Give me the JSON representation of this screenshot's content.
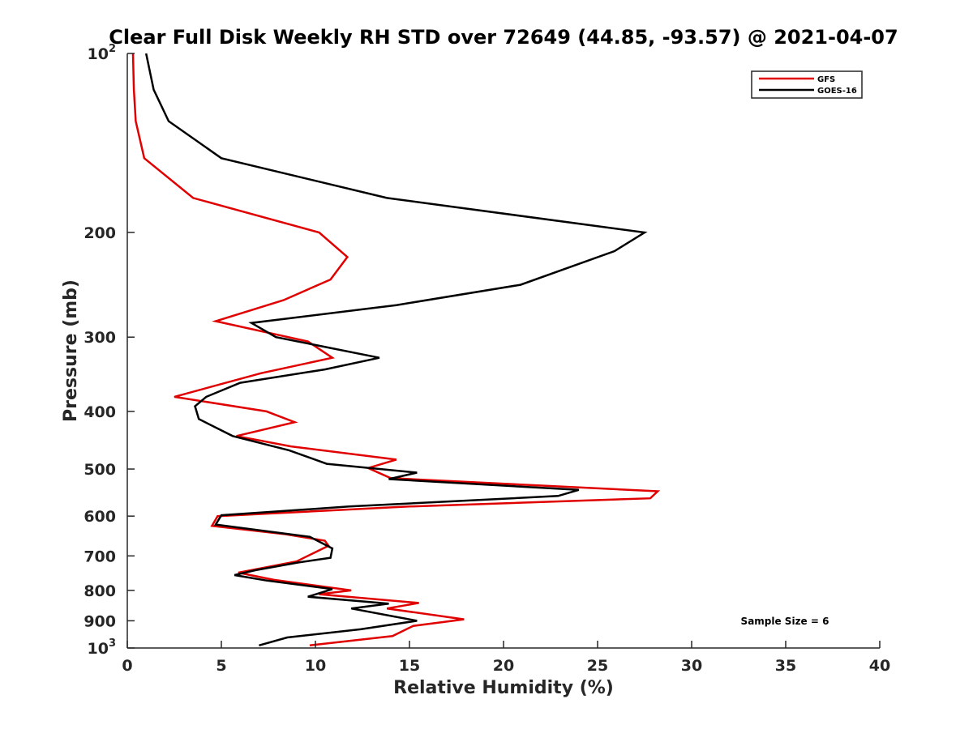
{
  "chart_data": {
    "type": "line",
    "title": "Clear Full Disk Weekly RH STD over 72649 (44.85, -93.57) @ 2021-04-07",
    "xlabel": "Relative Humidity (%)",
    "ylabel": "Pressure (mb)",
    "xlim": [
      0,
      40
    ],
    "ylim": [
      100,
      1000
    ],
    "y_scale": "log",
    "y_reversed": true,
    "x_ticks": [
      "0",
      "5",
      "10",
      "15",
      "20",
      "25",
      "30",
      "35",
      "40"
    ],
    "y_ticks": [
      {
        "value": 100,
        "base": "10",
        "exp": "2"
      },
      {
        "value": 200,
        "base": "200",
        "exp": ""
      },
      {
        "value": 300,
        "base": "300",
        "exp": ""
      },
      {
        "value": 400,
        "base": "400",
        "exp": ""
      },
      {
        "value": 500,
        "base": "500",
        "exp": ""
      },
      {
        "value": 600,
        "base": "600",
        "exp": ""
      },
      {
        "value": 700,
        "base": "700",
        "exp": ""
      },
      {
        "value": 800,
        "base": "800",
        "exp": ""
      },
      {
        "value": 900,
        "base": "900",
        "exp": ""
      },
      {
        "value": 1000,
        "base": "10",
        "exp": "3"
      }
    ],
    "grid": false,
    "legend_position": "top-right",
    "annotation": "Sample Size = 6",
    "series": [
      {
        "name": "GFS",
        "color": "#e00000",
        "points": [
          [
            0.3,
            100
          ],
          [
            0.35,
            115
          ],
          [
            0.45,
            130
          ],
          [
            0.9,
            150
          ],
          [
            3.5,
            175
          ],
          [
            10.2,
            200
          ],
          [
            11.7,
            220
          ],
          [
            10.8,
            240
          ],
          [
            8.3,
            260
          ],
          [
            4.7,
            282
          ],
          [
            9.6,
            305
          ],
          [
            10.9,
            325
          ],
          [
            7.1,
            345
          ],
          [
            2.5,
            378
          ],
          [
            7.4,
            400
          ],
          [
            8.9,
            417
          ],
          [
            5.8,
            440
          ],
          [
            8.7,
            458
          ],
          [
            14.3,
            482
          ],
          [
            12.8,
            498
          ],
          [
            14.0,
            518
          ],
          [
            28.2,
            545
          ],
          [
            27.8,
            560
          ],
          [
            15.0,
            578
          ],
          [
            4.8,
            600
          ],
          [
            4.5,
            623
          ],
          [
            8.3,
            643
          ],
          [
            10.5,
            660
          ],
          [
            10.7,
            673
          ],
          [
            9.0,
            715
          ],
          [
            5.9,
            747
          ],
          [
            7.8,
            768
          ],
          [
            11.9,
            800
          ],
          [
            10.2,
            812
          ],
          [
            15.5,
            840
          ],
          [
            13.8,
            858
          ],
          [
            17.9,
            895
          ],
          [
            15.2,
            918
          ],
          [
            14.1,
            955
          ],
          [
            9.7,
            990
          ]
        ]
      },
      {
        "name": "GOES-16",
        "color": "#000000",
        "points": [
          [
            1.0,
            100
          ],
          [
            1.4,
            115
          ],
          [
            2.2,
            130
          ],
          [
            5.0,
            150
          ],
          [
            13.8,
            175
          ],
          [
            27.5,
            200
          ],
          [
            25.9,
            215
          ],
          [
            20.9,
            245
          ],
          [
            14.3,
            265
          ],
          [
            6.6,
            284
          ],
          [
            7.9,
            300
          ],
          [
            13.4,
            325
          ],
          [
            10.5,
            340
          ],
          [
            6.0,
            358
          ],
          [
            4.2,
            378
          ],
          [
            3.6,
            392
          ],
          [
            3.8,
            412
          ],
          [
            5.6,
            440
          ],
          [
            8.6,
            465
          ],
          [
            10.6,
            490
          ],
          [
            15.4,
            507
          ],
          [
            13.9,
            520
          ],
          [
            24.0,
            542
          ],
          [
            22.9,
            555
          ],
          [
            11.8,
            578
          ],
          [
            5.0,
            598
          ],
          [
            4.7,
            620
          ],
          [
            9.7,
            650
          ],
          [
            10.9,
            680
          ],
          [
            10.8,
            705
          ],
          [
            9.1,
            718
          ],
          [
            6.8,
            740
          ],
          [
            5.7,
            754
          ],
          [
            7.4,
            770
          ],
          [
            10.9,
            796
          ],
          [
            9.6,
            820
          ],
          [
            13.9,
            842
          ],
          [
            11.9,
            858
          ],
          [
            15.4,
            900
          ],
          [
            12.4,
            930
          ],
          [
            8.5,
            960
          ],
          [
            7.0,
            990
          ]
        ]
      }
    ]
  }
}
